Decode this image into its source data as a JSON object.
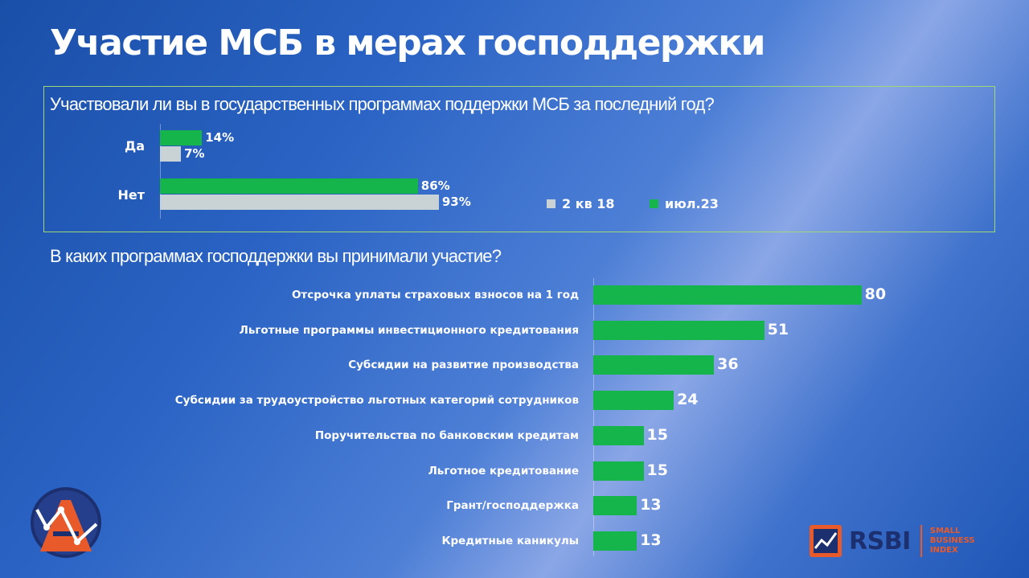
{
  "page_title": "Участие МСБ в мерах господдержки",
  "colors": {
    "background": "#2a63c4",
    "bar_primary": "#16b54c",
    "bar_secondary": "#c9d2d4",
    "box_border": "#9fd676",
    "brand_orange": "#e85a2a",
    "brand_navy": "#1c2f6e"
  },
  "chart_data": [
    {
      "type": "bar",
      "orientation": "horizontal",
      "title": "Участвовали ли вы в государственных программах поддержки МСБ за последний год?",
      "categories": [
        "Да",
        "Нет"
      ],
      "series": [
        {
          "name": "июл.23",
          "color": "#16b54c",
          "values": [
            14,
            86
          ],
          "labels": [
            "14%",
            "86%"
          ]
        },
        {
          "name": "2 кв 18",
          "color": "#c9d2d4",
          "values": [
            7,
            93
          ],
          "labels": [
            "7%",
            "93%"
          ]
        }
      ],
      "legend": {
        "placement": "bottom-right",
        "order": [
          "2 кв 18",
          "июл.23"
        ]
      },
      "unit": "%"
    },
    {
      "type": "bar",
      "orientation": "horizontal",
      "title": "В каких программах господдержки вы принимали участие?",
      "categories": [
        "Отсрочка уплаты страховых взносов на 1 год",
        "Льготные программы инвестиционного кредитования",
        "Субсидии на развитие производства",
        "Субсидии за трудоустройство льготных категорий сотрудников",
        "Поручительства по банковским кредитам",
        "Льготное кредитование",
        "Грант/господдержка",
        "Кредитные каникулы"
      ],
      "values": [
        80,
        51,
        36,
        24,
        15,
        15,
        13,
        13
      ],
      "labels": [
        "80",
        "51",
        "36",
        "24",
        "15",
        "15",
        "13",
        "13"
      ],
      "color": "#16b54c"
    }
  ],
  "branding": {
    "rsbi": "RSBI",
    "rsbi_sub": [
      "SMALL",
      "BUSINESS",
      "INDEX"
    ],
    "left_logo_icon": "analytics-a-logo-icon",
    "right_logo_icon": "rsbi-chart-logo-icon"
  }
}
